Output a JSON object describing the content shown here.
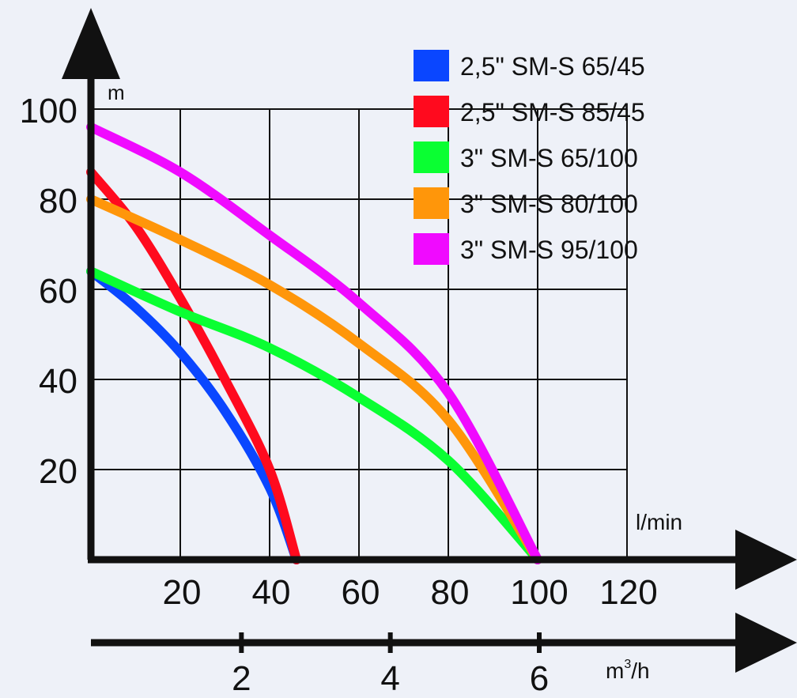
{
  "chart_data": {
    "type": "line",
    "ylabel": "m",
    "xlabel": "l/min",
    "xlabel2": "m³/h",
    "xlabel2_base": "m",
    "xlabel2_sup": "3",
    "xlabel2_tail": "/h",
    "ylim": [
      0,
      100
    ],
    "xlim": [
      0,
      120
    ],
    "grid": true,
    "legend_position": "top-right",
    "y_ticks": [
      20,
      40,
      60,
      80,
      100
    ],
    "x_ticks": [
      20,
      40,
      60,
      80,
      100,
      120
    ],
    "x2_ticks": [
      2,
      4,
      6
    ],
    "series": [
      {
        "name": "2,5\" SM-S 65/45",
        "color": "#0a46ff",
        "points": [
          [
            0,
            64
          ],
          [
            10,
            56
          ],
          [
            20,
            46
          ],
          [
            30,
            33
          ],
          [
            40,
            16
          ],
          [
            46,
            0
          ]
        ]
      },
      {
        "name": "2,5\" SM-S 85/45",
        "color": "#ff0a1e",
        "points": [
          [
            0,
            86
          ],
          [
            10,
            74
          ],
          [
            20,
            58
          ],
          [
            30,
            40
          ],
          [
            40,
            20
          ],
          [
            46,
            0
          ]
        ]
      },
      {
        "name": "3\" SM-S 65/100",
        "color": "#0aff32",
        "points": [
          [
            0,
            64
          ],
          [
            20,
            55
          ],
          [
            40,
            47
          ],
          [
            60,
            36
          ],
          [
            80,
            22
          ],
          [
            100,
            0
          ]
        ]
      },
      {
        "name": "3\" SM-S 80/100",
        "color": "#ff960a",
        "points": [
          [
            0,
            80
          ],
          [
            20,
            71
          ],
          [
            40,
            61
          ],
          [
            60,
            48
          ],
          [
            80,
            31
          ],
          [
            100,
            0
          ]
        ]
      },
      {
        "name": "3\" SM-S 95/100",
        "color": "#f00aff",
        "points": [
          [
            0,
            96
          ],
          [
            20,
            86
          ],
          [
            40,
            72
          ],
          [
            60,
            57
          ],
          [
            80,
            37
          ],
          [
            100,
            0
          ]
        ]
      }
    ]
  }
}
